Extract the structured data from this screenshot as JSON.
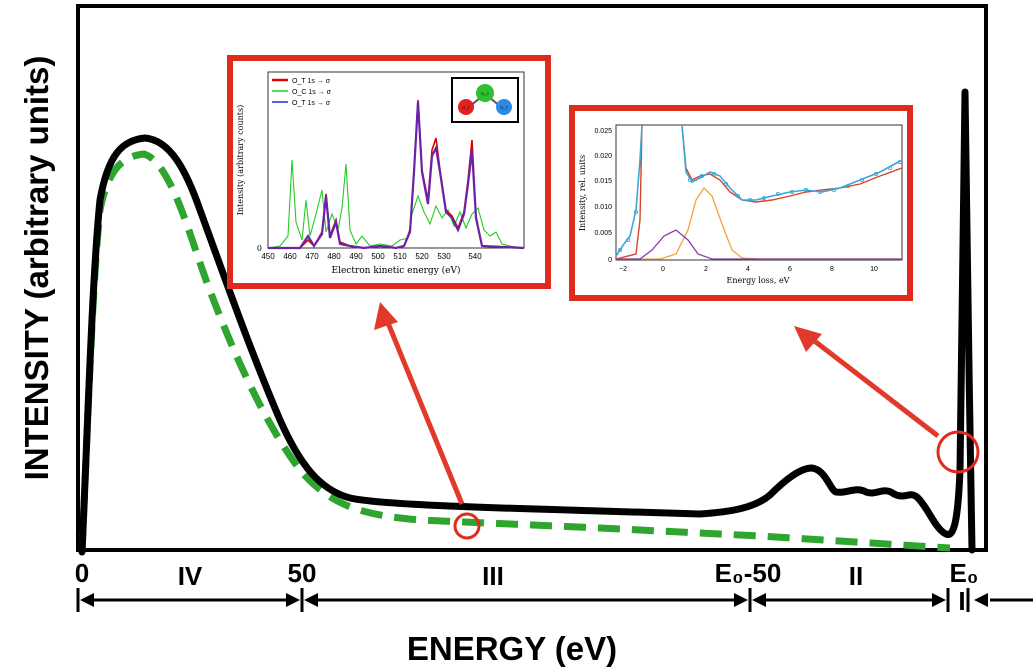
{
  "main": {
    "ylabel": "INTENSITY (arbitrary units)",
    "xlabel": "ENERGY (eV)",
    "ticks": [
      "0",
      "50",
      "E₀-50",
      "E₀"
    ],
    "regions": [
      "IV",
      "III",
      "II",
      "I"
    ]
  },
  "inset_left": {
    "ylabel": "Intensity (arbitrary counts)",
    "xlabel": "Electron kinetic energy (eV)",
    "y_tick": "0",
    "x_ticks": [
      "450",
      "460",
      "470",
      "480",
      "490",
      "500",
      "510",
      "520",
      "530",
      "540"
    ],
    "legend": [
      "O_T 1s → σ",
      "O_C 1s → σ",
      "O_T 1s → σ"
    ],
    "molecule_labels": [
      "O_T",
      "O_C",
      "O_T"
    ]
  },
  "inset_right": {
    "ylabel": "Intensity, rel. units",
    "xlabel": "Energy loss, eV",
    "y_ticks": [
      "0.025",
      "0.020",
      "0.015",
      "0.010",
      "0.005",
      "0"
    ],
    "x_ticks": [
      "−2",
      "0",
      "2",
      "4",
      "6",
      "8",
      "10"
    ]
  },
  "colors": {
    "main_curve": "#000000",
    "background_curve": "#2ea52e",
    "frame_red": "#e02a1c",
    "arrow_red": "#e23a2a",
    "inset_red": "#e00000",
    "inset_green": "#22cc22",
    "inset_blue": "#2a2ad0",
    "inset_purple": "#7a1fa0",
    "inset_cyan": "#3aa8d8",
    "inset_orange": "#f2a23a",
    "inset_fit": "#d9432b",
    "inset_violet": "#8a3db0"
  }
}
